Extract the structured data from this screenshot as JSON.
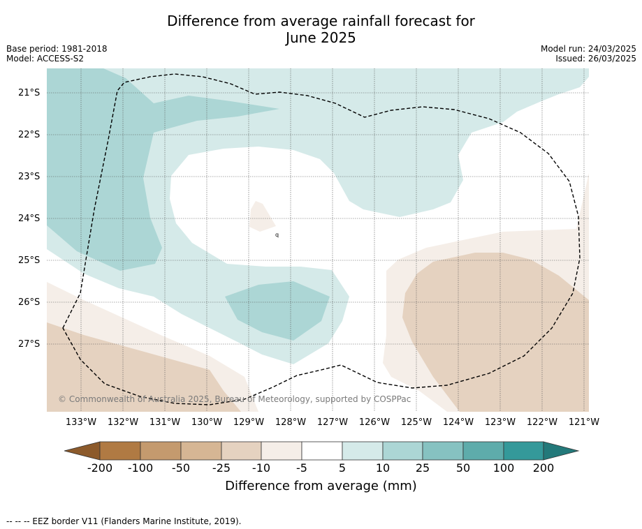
{
  "title_line1": "Difference from average rainfall forecast for",
  "title_line2": "June 2025",
  "base_period": "Base period: 1981-2018",
  "model": "Model: ACCESS-S2",
  "model_run": "Model run: 24/03/2025",
  "issued": "Issued: 26/03/2025",
  "lat_labels": [
    "21°S",
    "22°S",
    "23°S",
    "24°S",
    "25°S",
    "26°S",
    "27°S"
  ],
  "lon_labels": [
    "133°W",
    "132°W",
    "131°W",
    "130°W",
    "129°W",
    "128°W",
    "127°W",
    "126°W",
    "125°W",
    "124°W",
    "123°W",
    "122°W",
    "121°W"
  ],
  "copyright": "© Commonwealth of Australia 2025, Bureau of Meteorology, supported by COSPPac",
  "colorbar": {
    "labels": [
      "-200",
      "-100",
      "-50",
      "-25",
      "-10",
      "-5",
      "5",
      "10",
      "25",
      "50",
      "100",
      "200"
    ],
    "colors": [
      "#8c5a2b",
      "#b07a43",
      "#c49a6e",
      "#d6b694",
      "#e5d2c0",
      "#f5eee8",
      "#ffffff",
      "#d5eae9",
      "#acd6d5",
      "#86c2c1",
      "#5eacab",
      "#34999a",
      "#23797a"
    ],
    "title": "Difference from average (mm)"
  },
  "contour_colors": {
    "tan_light": "#f5eee8",
    "tan": "#e5d2c0",
    "teal_light": "#d5eae9",
    "teal": "#acd6d5"
  },
  "footnote": "--  --  -- EEZ border V11 (Flanders Marine Institute, 2019)."
}
